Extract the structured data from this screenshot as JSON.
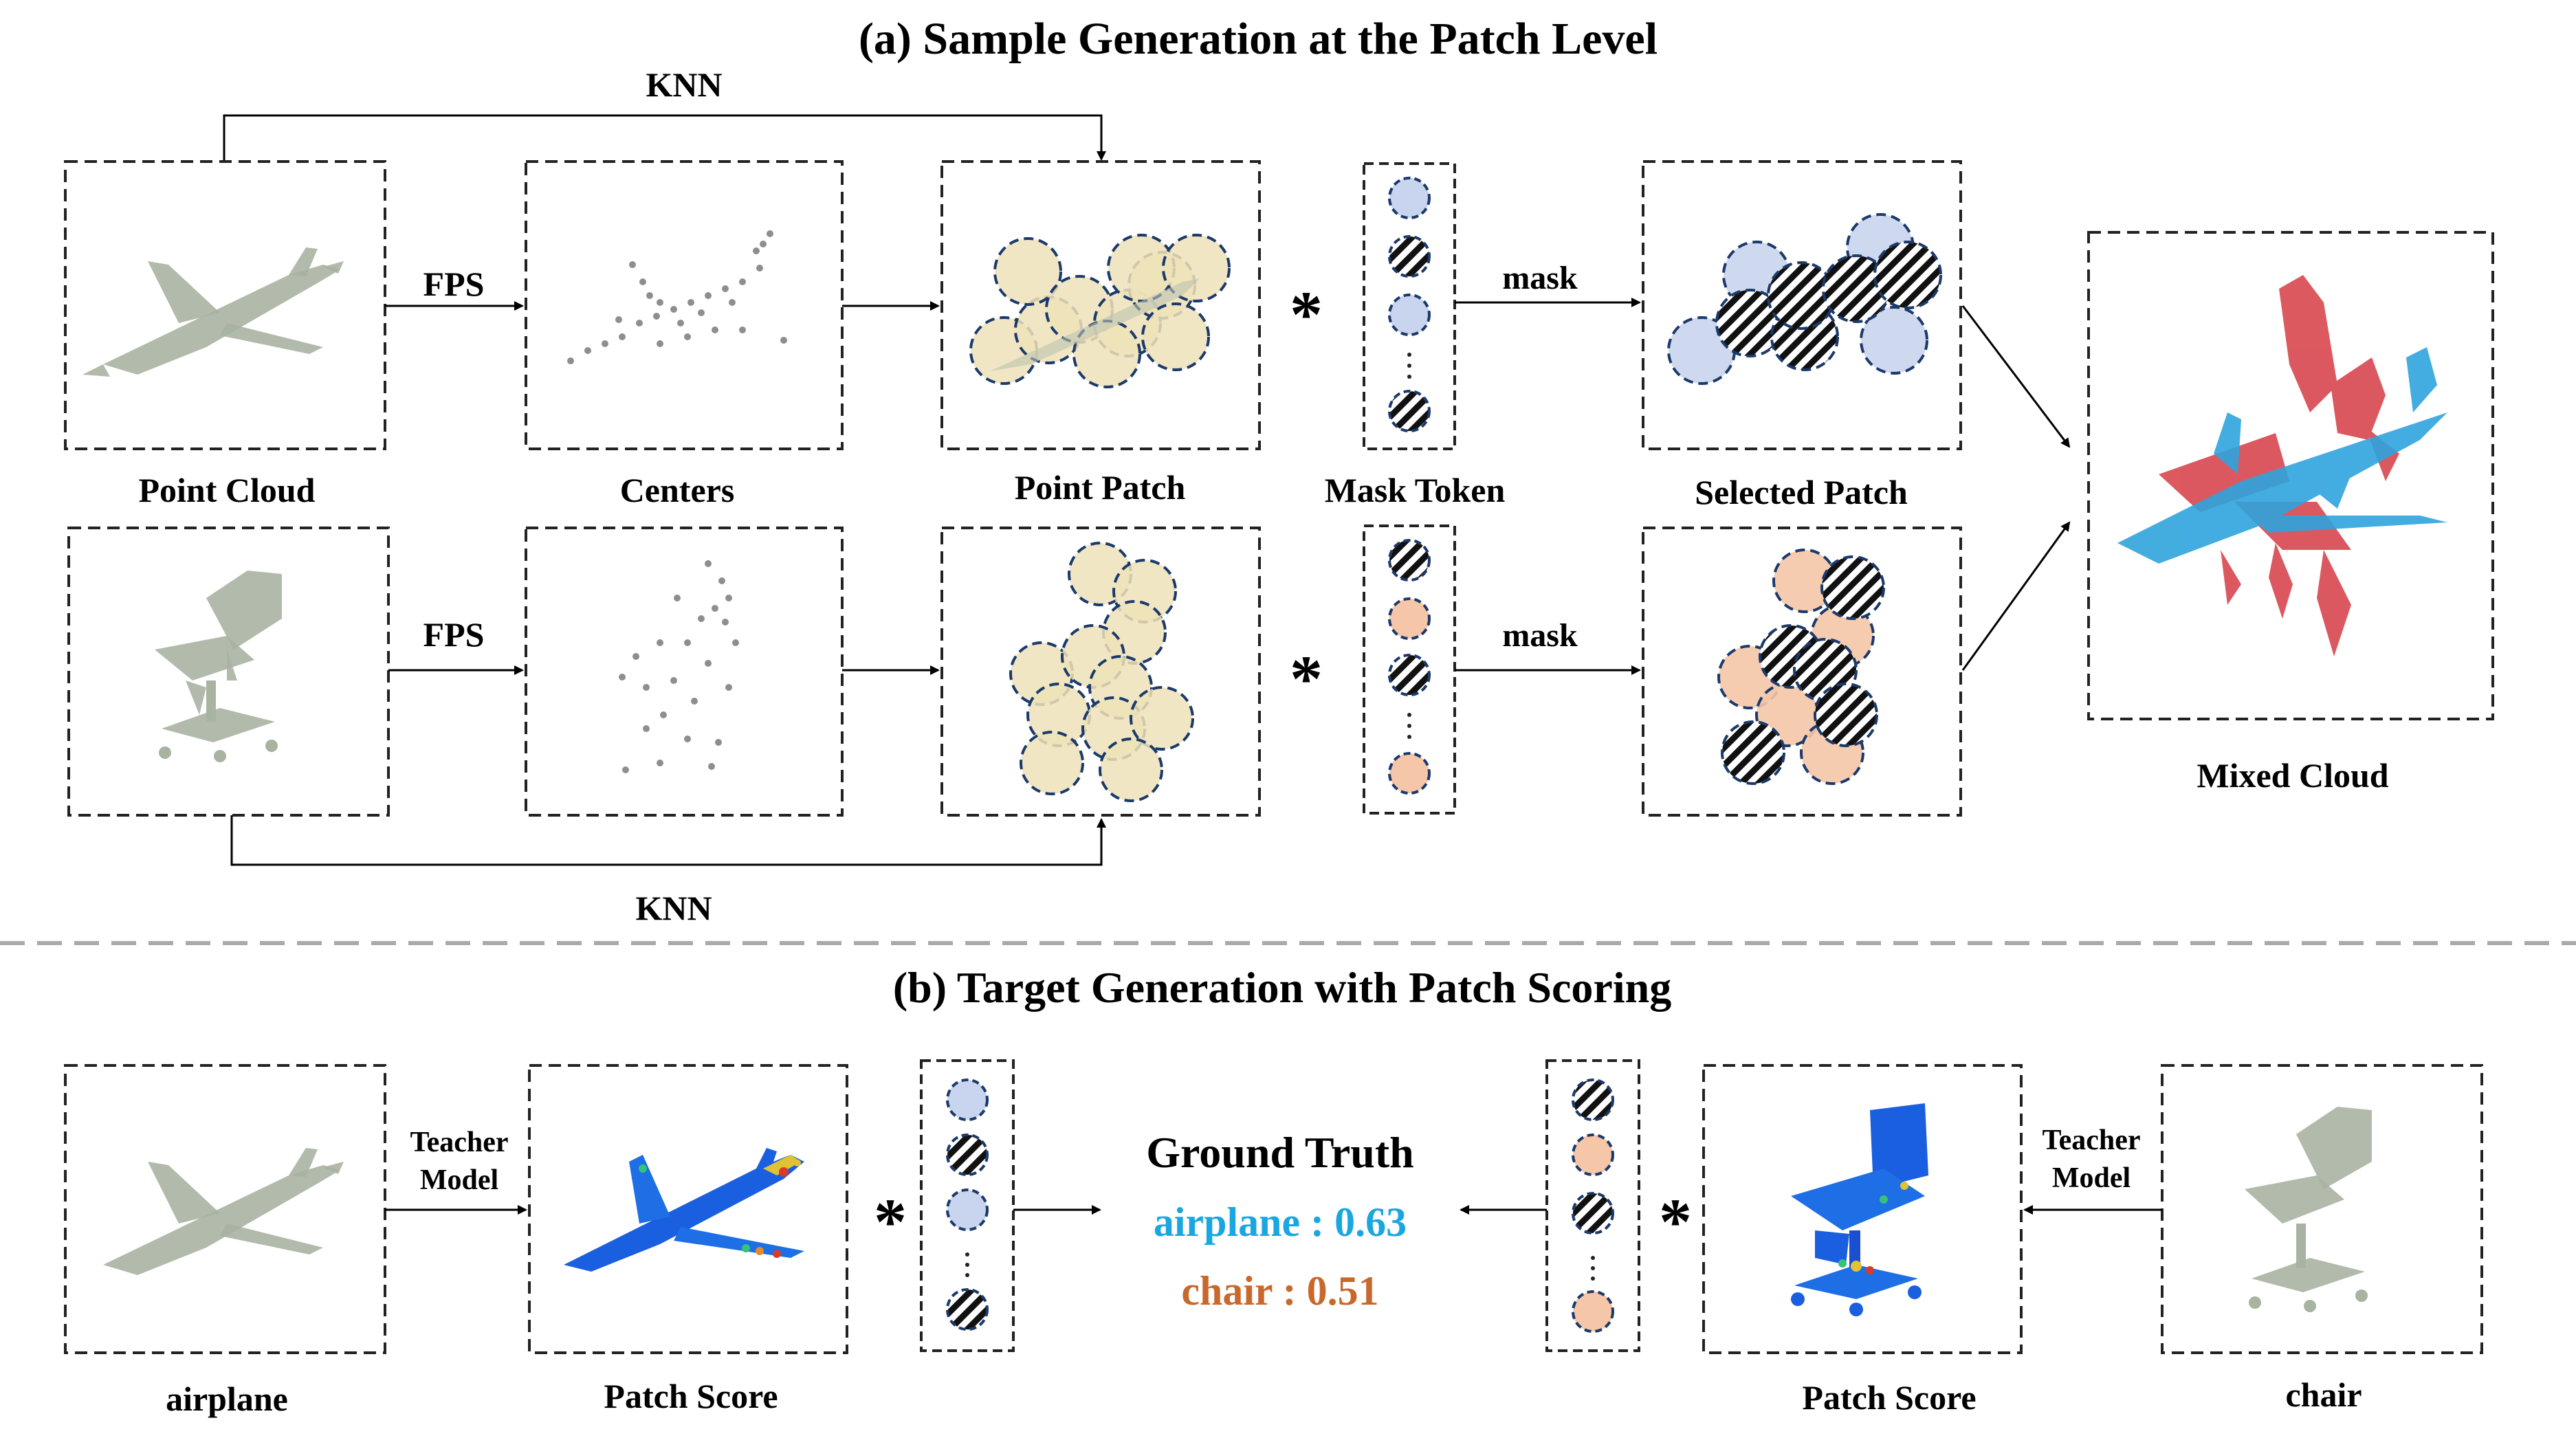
{
  "section_a": {
    "title": "(a) Sample Generation at the Patch Level",
    "knn_top": "KNN",
    "knn_bottom": "KNN",
    "fps_top": "FPS",
    "fps_bottom": "FPS",
    "mask_top": "mask",
    "mask_bottom": "mask",
    "operator_top": "*",
    "operator_bottom": "*",
    "labels": {
      "point_cloud": "Point Cloud",
      "centers": "Centers",
      "point_patch": "Point Patch",
      "mask_token": "Mask Token",
      "selected_patch": "Selected Patch",
      "mixed_cloud": "Mixed Cloud"
    }
  },
  "section_b": {
    "title": "(b) Target Generation with Patch Scoring",
    "teacher_left": [
      "Teacher",
      "Model"
    ],
    "teacher_right": [
      "Teacher",
      "Model"
    ],
    "operator_left": "*",
    "operator_right": "*",
    "ground_truth": {
      "title": "Ground Truth",
      "airplane": "airplane : 0.63",
      "chair": "chair : 0.51"
    },
    "labels": {
      "airplane": "airplane",
      "patch_score_left": "Patch Score",
      "patch_score_right": "Patch Score",
      "chair": "chair"
    }
  },
  "colors": {
    "blue_token": "#c9d5ee",
    "orange_token": "#f5c6a8",
    "airplane_text": "#1aa7e0",
    "chair_text": "#c8682c",
    "red_cloud": "#d9474f",
    "blue_cloud": "#2fa4dd",
    "grey_cloud": "#a9b3a2",
    "patch_fill": "#efe2b8",
    "dashed_border": "#1b3a6b"
  },
  "icons": [
    "airplane-point-cloud-icon",
    "chair-point-cloud-icon",
    "hatched-mask-token-icon",
    "heatmap-airplane-icon",
    "heatmap-chair-icon"
  ]
}
